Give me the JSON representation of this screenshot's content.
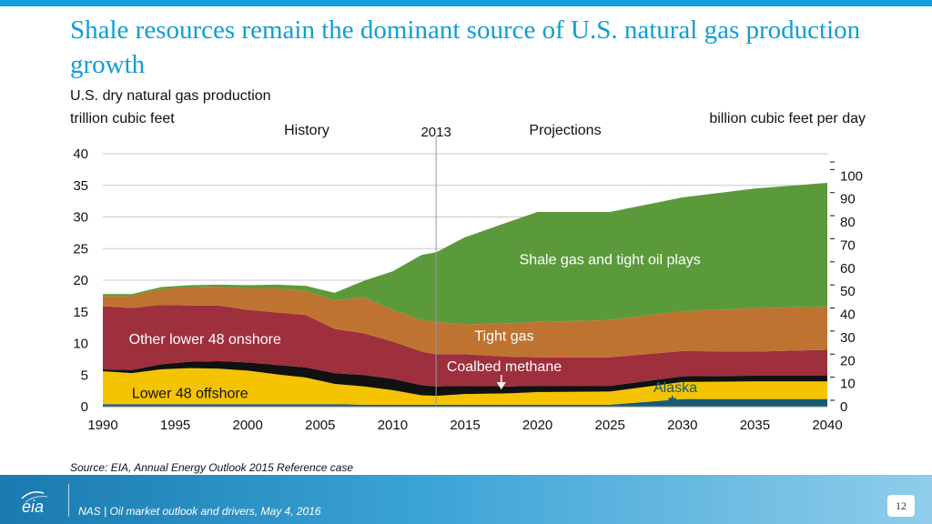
{
  "header": {
    "title": "Shale resources remain the dominant source of U.S. natural gas production growth",
    "subtitle": "U.S. dry natural gas production",
    "unit_left": "trillion cubic feet",
    "unit_right": "billion cubic feet per day"
  },
  "colors": {
    "accent": "#0f9ed5",
    "shale": "#5b9a3b",
    "tight_gas": "#bf7330",
    "other_onshore": "#9e2f3c",
    "coalbed": "#111111",
    "offshore": "#f5c400",
    "alaska": "#175c73"
  },
  "chart_data": {
    "type": "area",
    "stacked": true,
    "title": "U.S. dry natural gas production",
    "ylabel": "trillion cubic feet",
    "ylabel_right": "billion cubic feet per day",
    "xlim": [
      1990,
      2040
    ],
    "ylim": [
      0,
      40
    ],
    "ylim_right": [
      0,
      109.6
    ],
    "grid": true,
    "x_ticks": [
      1990,
      1995,
      2000,
      2005,
      2010,
      2015,
      2020,
      2025,
      2030,
      2035,
      2040
    ],
    "y_ticks": [
      0,
      5,
      10,
      15,
      20,
      25,
      30,
      35,
      40
    ],
    "y_ticks_right": [
      0,
      10,
      20,
      30,
      40,
      50,
      60,
      70,
      80,
      90,
      100
    ],
    "x_tick_labels": [
      "1990",
      "1995",
      "2000",
      "2005",
      "2010",
      "2015",
      "2020",
      "2025",
      "2030",
      "2035",
      "2040"
    ],
    "y_tick_labels": [
      "0",
      "5",
      "10",
      "15",
      "20",
      "25",
      "30",
      "35",
      "40"
    ],
    "y_tick_labels_right": [
      "0",
      "10",
      "20",
      "30",
      "40",
      "50",
      "60",
      "70",
      "80",
      "90",
      "100"
    ],
    "divider_year": 2013,
    "divider_label": "2013",
    "history_label": "History",
    "projections_label": "Projections",
    "x": [
      1990,
      1992,
      1994,
      1996,
      1998,
      2000,
      2002,
      2004,
      2006,
      2008,
      2010,
      2012,
      2013,
      2015,
      2018,
      2020,
      2025,
      2030,
      2035,
      2040
    ],
    "series": [
      {
        "name": "Alaska",
        "label": "Alaska",
        "color": "#175c73",
        "values": [
          0.4,
          0.4,
          0.4,
          0.4,
          0.4,
          0.4,
          0.4,
          0.4,
          0.4,
          0.3,
          0.3,
          0.3,
          0.3,
          0.3,
          0.3,
          0.3,
          0.3,
          1.2,
          1.2,
          1.2
        ]
      },
      {
        "name": "Lower 48 offshore",
        "label": "Lower 48 offshore",
        "color": "#f5c400",
        "values": [
          5.2,
          4.9,
          5.5,
          5.7,
          5.6,
          5.3,
          4.7,
          4.2,
          3.2,
          2.9,
          2.3,
          1.5,
          1.4,
          1.7,
          1.8,
          2.0,
          2.1,
          2.7,
          2.8,
          2.8
        ]
      },
      {
        "name": "Coalbed methane",
        "label": "Coalbed methane",
        "color": "#111111",
        "values": [
          0.3,
          0.5,
          0.8,
          1.0,
          1.2,
          1.3,
          1.5,
          1.6,
          1.7,
          1.8,
          1.8,
          1.6,
          1.5,
          1.3,
          1.1,
          1.0,
          0.9,
          0.9,
          0.9,
          0.9
        ]
      },
      {
        "name": "Other lower 48 onshore",
        "label": "Other lower 48 onshore",
        "color": "#9e2f3c",
        "values": [
          10.0,
          9.8,
          9.4,
          8.9,
          8.8,
          8.3,
          8.3,
          8.3,
          7.0,
          6.6,
          5.9,
          5.3,
          5.1,
          5.0,
          4.7,
          4.5,
          4.5,
          4.0,
          3.8,
          4.1
        ]
      },
      {
        "name": "Tight gas",
        "label": "Tight gas",
        "color": "#bf7330",
        "values": [
          1.6,
          1.9,
          2.5,
          2.9,
          3.0,
          3.4,
          3.8,
          3.8,
          4.5,
          5.7,
          5.0,
          5.0,
          5.1,
          4.7,
          5.3,
          5.6,
          5.9,
          6.3,
          6.9,
          6.8
        ]
      },
      {
        "name": "Shale gas and tight oil plays",
        "label": "Shale gas and tight oil plays",
        "color": "#5b9a3b",
        "values": [
          0.3,
          0.3,
          0.3,
          0.3,
          0.3,
          0.5,
          0.6,
          0.8,
          1.2,
          2.6,
          6.1,
          10.3,
          11.0,
          13.8,
          16.0,
          17.4,
          17.1,
          18.0,
          18.9,
          19.6
        ]
      }
    ],
    "annotations": [
      {
        "text": "Shale gas and tight oil plays",
        "series": "Shale gas and tight oil plays",
        "x": 2025.0,
        "y": 22.5,
        "color": "#ffffff",
        "anchor": "middle"
      },
      {
        "text": "Tight gas",
        "series": "Tight gas",
        "x": 2017.7,
        "y": 10.4,
        "color": "#ffffff",
        "anchor": "middle"
      },
      {
        "text": "Other lower 48 onshore",
        "series": "Other lower 48 onshore",
        "x": 1991.8,
        "y": 9.9,
        "color": "#ffffff",
        "anchor": "start"
      },
      {
        "text": "Coalbed methane",
        "series": "Coalbed methane",
        "x": 2017.7,
        "y": 5.6,
        "color": "#ffffff",
        "anchor": "middle",
        "arrow_to": [
          2017.5,
          3.0
        ]
      },
      {
        "text": "Lower 48 offshore",
        "series": "Lower 48 offshore",
        "x": 1992.0,
        "y": 1.4,
        "color": "#111111",
        "anchor": "start"
      },
      {
        "text": "Alaska",
        "series": "Alaska",
        "x": 2028.0,
        "y": 2.3,
        "color": "#175c73",
        "anchor": "start",
        "arrow_to": [
          2029.3,
          0.5
        ]
      }
    ]
  },
  "source": "Source:  EIA, Annual Energy Outlook 2015 Reference case",
  "footer": {
    "logo_text": "eia",
    "text": "NAS | Oil market outlook and drivers, May 4, 2016",
    "page_number": "12"
  }
}
